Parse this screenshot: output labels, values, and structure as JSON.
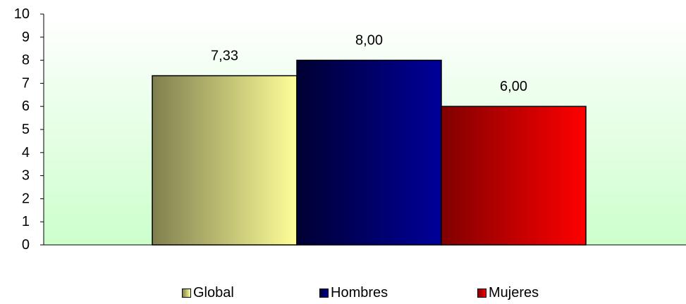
{
  "chart_data": {
    "type": "bar",
    "title": "",
    "xlabel": "",
    "ylabel": "",
    "ylim": [
      0,
      10
    ],
    "yticks": [
      0,
      1,
      2,
      3,
      4,
      5,
      6,
      7,
      8,
      9,
      10
    ],
    "grid": false,
    "legend_position": "bottom",
    "series": [
      {
        "name": "Global",
        "value": 7.33,
        "label": "7,33",
        "gradient": [
          "#7f7f4f",
          "#ffff99"
        ]
      },
      {
        "name": "Hombres",
        "value": 8.0,
        "label": "8,00",
        "gradient": [
          "#000033",
          "#000099"
        ]
      },
      {
        "name": "Mujeres",
        "value": 6.0,
        "label": "6,00",
        "gradient": [
          "#800000",
          "#ff0000"
        ]
      }
    ],
    "plot_background": [
      "#ffffff",
      "#ccffcc"
    ]
  }
}
